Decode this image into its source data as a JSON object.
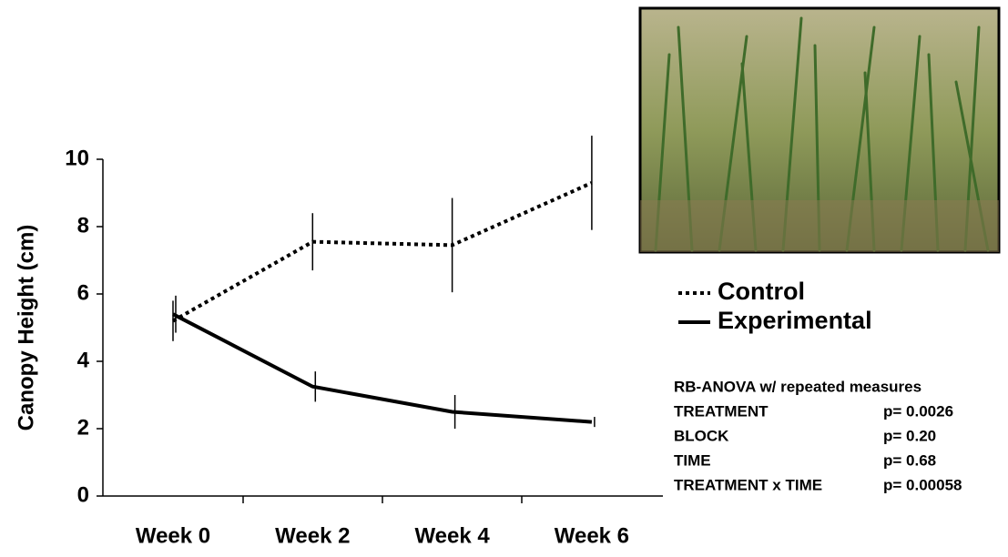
{
  "chart_data": {
    "type": "line",
    "y_label": "Canopy Height (cm)",
    "categories": [
      "Week 0",
      "Week 2",
      "Week 4",
      "Week 6"
    ],
    "series": [
      {
        "name": "Control",
        "color": "#000000",
        "dash": "dotted",
        "values": [
          5.2,
          7.55,
          7.45,
          9.3
        ],
        "errors": [
          0.6,
          0.85,
          1.4,
          1.4
        ]
      },
      {
        "name": "Experimental",
        "color": "#000000",
        "dash": "solid",
        "values": [
          5.4,
          3.25,
          2.5,
          2.2
        ],
        "errors": [
          0.55,
          0.45,
          0.5,
          0.15
        ]
      }
    ],
    "ylim": [
      0,
      10
    ],
    "yticks": [
      0,
      2,
      4,
      6,
      8,
      10
    ],
    "grid": false,
    "legend": "right",
    "anova": {
      "title": "RB-ANOVA w/ repeated measures",
      "rows": [
        [
          "TREATMENT",
          "p= 0.0026"
        ],
        [
          "BLOCK",
          "p= 0.20"
        ],
        [
          "TIME",
          "p= 0.68"
        ],
        [
          "TREATMENT x TIME",
          "p= 0.00058"
        ]
      ]
    }
  }
}
